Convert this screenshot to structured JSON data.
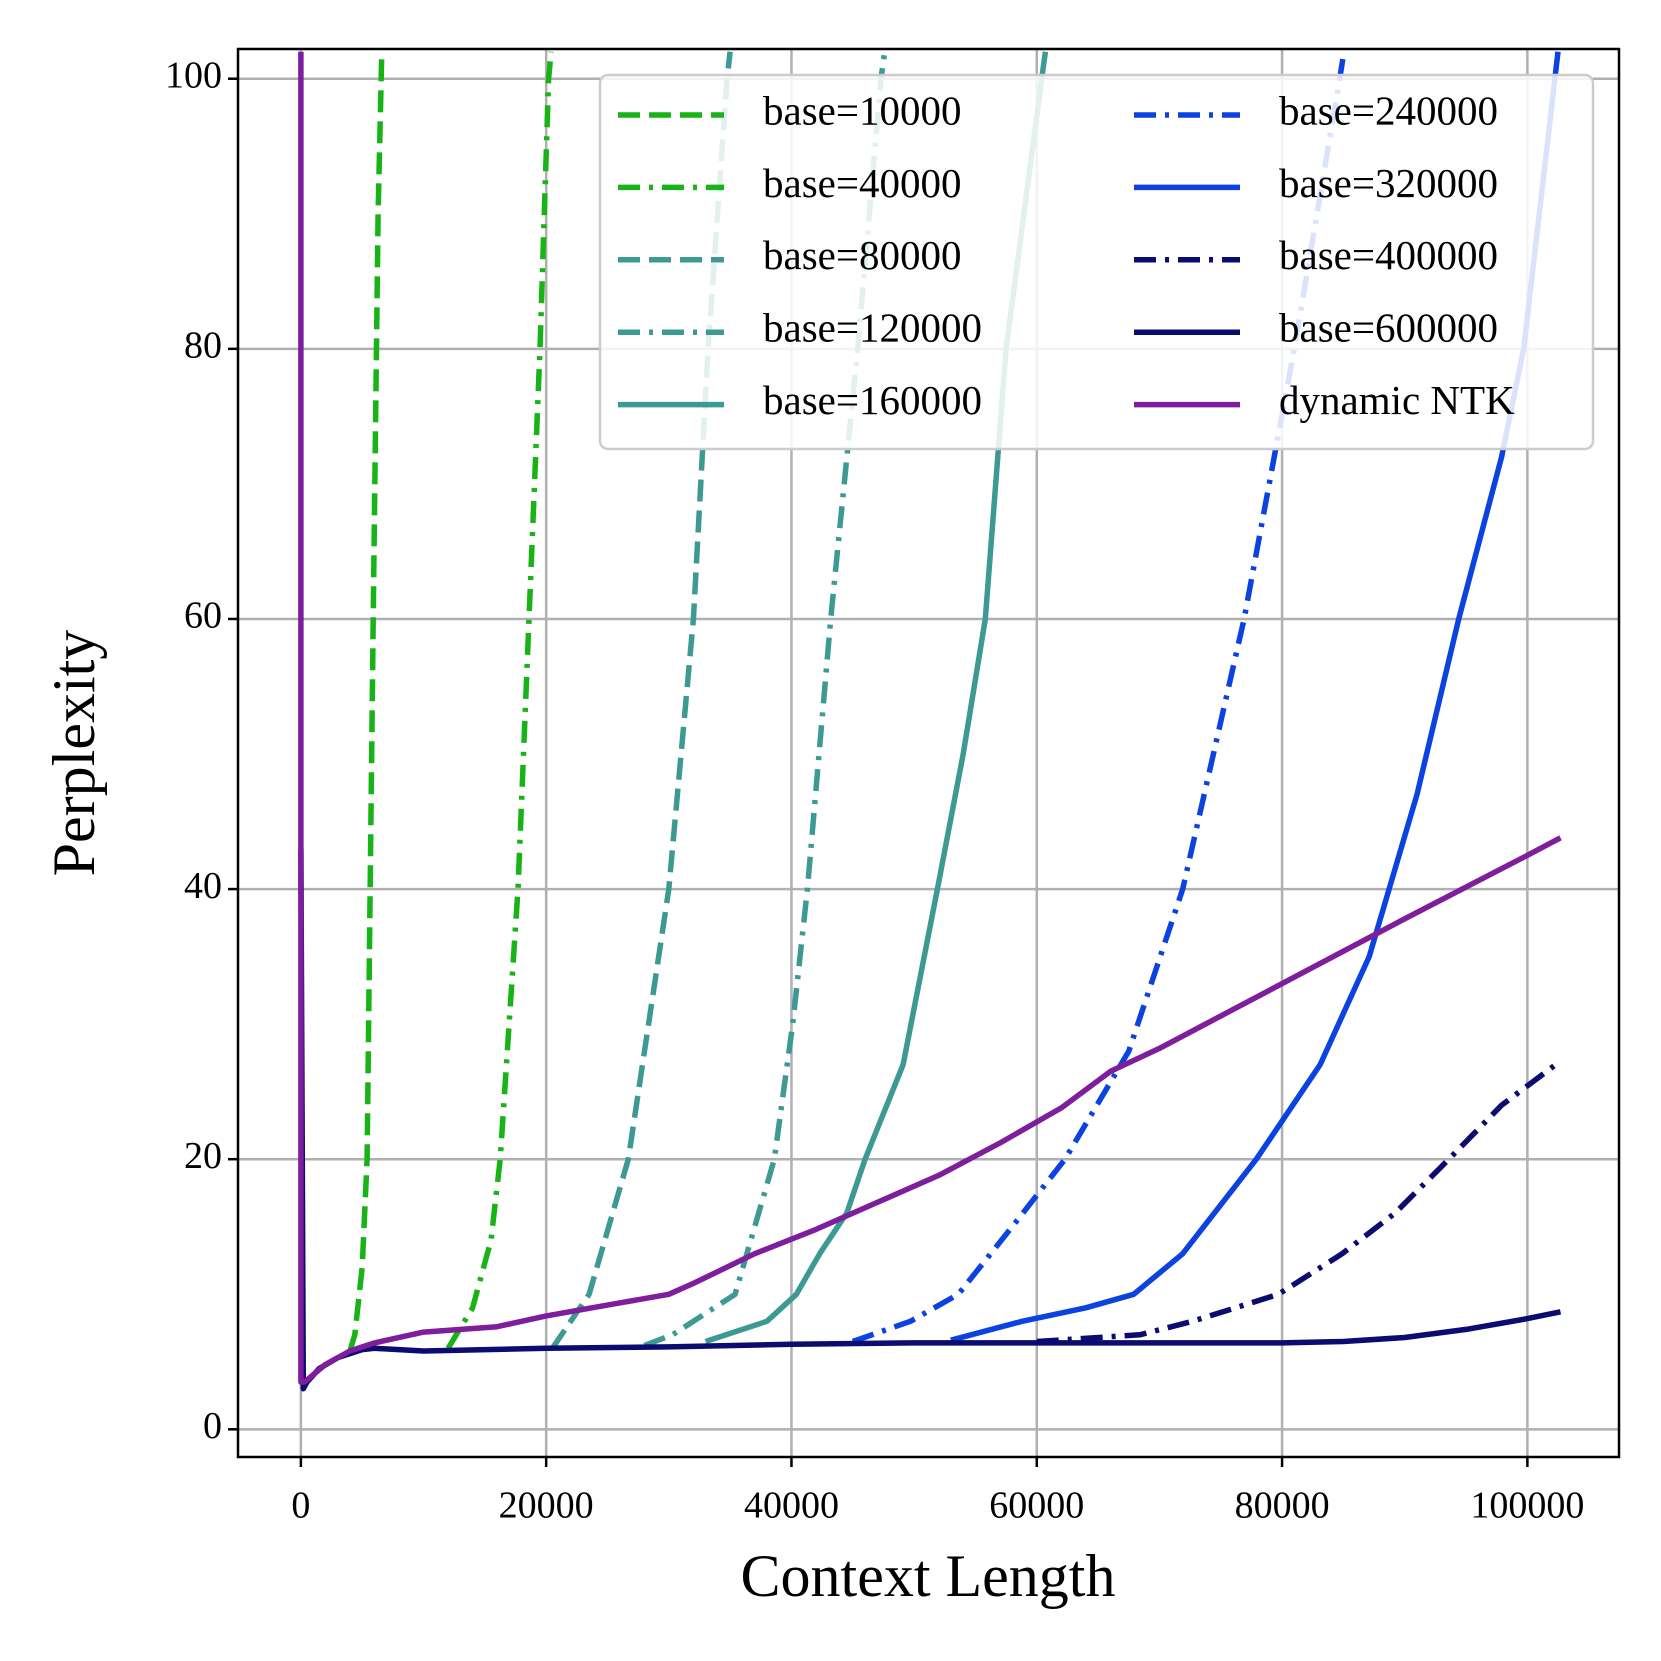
{
  "chart_data": {
    "type": "line",
    "xlabel": "Context Length",
    "ylabel": "Perplexity",
    "xlim": [
      -5126,
      107470
    ],
    "ylim": [
      -2.05,
      102.2
    ],
    "xticks": [
      0,
      20000,
      40000,
      60000,
      80000,
      100000
    ],
    "yticks": [
      0,
      20,
      40,
      60,
      80,
      100
    ],
    "grid": true,
    "legend_loc": "upper right",
    "legend_ncol": 2,
    "series": [
      {
        "name": "base=10000",
        "color": "#17b317",
        "linestyle": "dashed",
        "x": [
          4000,
          4400,
          5000,
          5400,
          5900,
          6300,
          6600
        ],
        "values": [
          5.8,
          7,
          12,
          20,
          60,
          90,
          102
        ]
      },
      {
        "name": "base=40000",
        "color": "#17b317",
        "linestyle": "dashdot",
        "x": [
          12000,
          14000,
          15500,
          16250,
          17700,
          18600,
          19500,
          20200,
          20400
        ],
        "values": [
          6,
          9,
          14,
          20,
          40,
          60,
          80,
          100,
          102
        ]
      },
      {
        "name": "base=80000",
        "color": "#3d9a92",
        "linestyle": "dashed",
        "x": [
          20500,
          23500,
          26700,
          30000,
          32000,
          33200,
          34750,
          35000
        ],
        "values": [
          6,
          10,
          20,
          40,
          60,
          80,
          100,
          102
        ]
      },
      {
        "name": "base=120000",
        "color": "#3d9a92",
        "linestyle": "dashdot",
        "x": [
          28000,
          30300,
          35400,
          38600,
          40100,
          41300,
          43200,
          45400,
          47300,
          47600
        ],
        "values": [
          6.2,
          7,
          10,
          20,
          30,
          40,
          60,
          80,
          100,
          102
        ]
      },
      {
        "name": "base=160000",
        "color": "#3d9a92",
        "linestyle": "solid",
        "x": [
          33000,
          38000,
          40400,
          42300,
          44500,
          46000,
          49100,
          51900,
          54000,
          55800,
          57500,
          60400,
          60700
        ],
        "values": [
          6.5,
          8,
          10,
          13,
          16,
          20,
          27,
          40,
          50,
          60,
          80,
          100,
          102
        ]
      },
      {
        "name": "base=240000",
        "color": "#0c42e0",
        "linestyle": "dashdot",
        "x": [
          45000,
          49700,
          53600,
          58000,
          62300,
          67500,
          71900,
          76900,
          81000,
          84700,
          85050
        ],
        "values": [
          6.5,
          8,
          10,
          15,
          20,
          28,
          40,
          60,
          80,
          100,
          102
        ]
      },
      {
        "name": "base=320000",
        "color": "#0c42e0",
        "linestyle": "solid",
        "x": [
          53000,
          58800,
          64000,
          67900,
          71900,
          77900,
          83100,
          87100,
          91000,
          94400,
          97900,
          99700,
          102500
        ],
        "values": [
          6.6,
          8,
          9,
          10,
          13,
          20,
          27,
          35,
          47,
          60,
          72,
          80,
          102
        ]
      },
      {
        "name": "base=400000",
        "color": "#0b0b70",
        "linestyle": "dashdot",
        "x": [
          60000,
          68400,
          72700,
          79700,
          84900,
          89200,
          93600,
          97900,
          102300
        ],
        "values": [
          6.5,
          7,
          8,
          10,
          13,
          16,
          20,
          24,
          27
        ]
      },
      {
        "name": "base=600000",
        "color": "#0b0b70",
        "linestyle": "solid",
        "x": [
          0,
          200,
          500,
          1500,
          3000,
          5000,
          6000,
          10000,
          20000,
          30000,
          40000,
          50000,
          60000,
          70000,
          80000,
          85000,
          90000,
          95000,
          100000,
          102700
        ],
        "values": [
          43,
          3,
          3.5,
          4.5,
          5.3,
          5.9,
          6.0,
          5.8,
          6.0,
          6.1,
          6.3,
          6.4,
          6.4,
          6.4,
          6.4,
          6.5,
          6.8,
          7.4,
          8.2,
          8.7
        ]
      },
      {
        "name": "dynamic NTK",
        "color": "#7e1e9c",
        "linestyle": "solid",
        "x": [
          0,
          0,
          300,
          2000,
          4000,
          6000,
          10000,
          16000,
          20000,
          25000,
          30000,
          32000,
          37000,
          42000,
          47000,
          52000,
          57000,
          62000,
          66000,
          70000,
          80000,
          90000,
          100000,
          102700
        ],
        "values": [
          102,
          3.5,
          3.5,
          4.8,
          5.8,
          6.4,
          7.2,
          7.6,
          8.4,
          9.2,
          10.0,
          10.8,
          13.0,
          14.8,
          16.8,
          18.8,
          21.2,
          23.8,
          26.5,
          28.2,
          33.0,
          37.8,
          42.5,
          43.8
        ]
      }
    ]
  }
}
